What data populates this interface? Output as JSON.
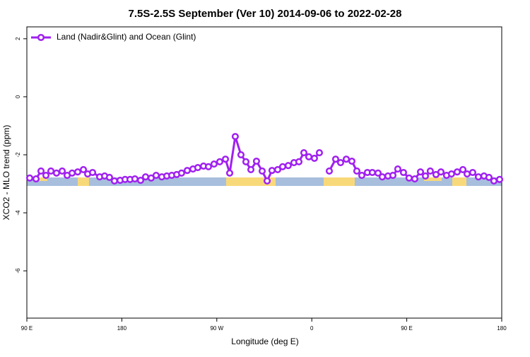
{
  "chart_data": {
    "type": "line",
    "title": "7.5S-2.5S September (Ver 10)   2014-09-06 to 2022-02-28",
    "x_label": "Longitude (deg E)",
    "y_label": "XCO2 - MLO trend (ppm)",
    "x": [
      92.7,
      98.7,
      103.4,
      108.1,
      112.8,
      118.1,
      123.5,
      128.2,
      132.9,
      138.2,
      143.6,
      147.6,
      152.3,
      159.0,
      163.7,
      168.3,
      173.0,
      178.4,
      183.1,
      187.8,
      192.4,
      197.8,
      202.5,
      207.8,
      212.5,
      217.9,
      222.6,
      227.3,
      232.0,
      236.6,
      242.0,
      247.4,
      252.0,
      257.4,
      262.1,
      267.4,
      272.8,
      278.2,
      282.2,
      287.5,
      292.9,
      297.6,
      302.3,
      307.6,
      313.0,
      317.7,
      322.3,
      327.7,
      332.4,
      337.7,
      343.1,
      347.8,
      352.5,
      357.2,
      362.5,
      367.2,
      371.9,
      376.6,
      382.6,
      387.3,
      392.7,
      398.0,
      402.7,
      407.4,
      412.7,
      417.4,
      422.8,
      426.8,
      432.2,
      436.9,
      441.5,
      446.9,
      452.2,
      457.6,
      463.0,
      467.7,
      472.3,
      477.7,
      482.4,
      487.7,
      492.4,
      497.8,
      503.2,
      507.2,
      512.5,
      517.9,
      523.2,
      527.9,
      532.6,
      538.0
    ],
    "series": [
      {
        "name": "Land (Nadir&Glint) and Ocean (Glint)",
        "color": "#a020f0",
        "values": [
          -2.8,
          -2.83,
          -2.56,
          -2.71,
          -2.56,
          -2.63,
          -2.56,
          -2.71,
          -2.63,
          -2.59,
          -2.51,
          -2.66,
          -2.61,
          -2.76,
          -2.73,
          -2.78,
          -2.9,
          -2.88,
          -2.85,
          -2.85,
          -2.83,
          -2.88,
          -2.76,
          -2.8,
          -2.71,
          -2.76,
          -2.73,
          -2.71,
          -2.68,
          -2.63,
          -2.54,
          -2.49,
          -2.44,
          -2.39,
          -2.41,
          -2.32,
          -2.24,
          -2.15,
          -2.63,
          -1.37,
          -2.0,
          -2.24,
          -2.51,
          -2.22,
          -2.56,
          -2.9,
          -2.54,
          -2.51,
          -2.41,
          -2.37,
          -2.27,
          -2.24,
          -1.93,
          -2.07,
          -2.12,
          -1.93,
          null,
          -2.56,
          -2.15,
          -2.27,
          -2.15,
          -2.22,
          -2.56,
          -2.71,
          -2.61,
          -2.61,
          -2.63,
          -2.76,
          -2.73,
          -2.71,
          -2.49,
          -2.61,
          -2.8,
          -2.83,
          -2.59,
          -2.73,
          -2.56,
          -2.68,
          -2.59,
          -2.71,
          -2.66,
          -2.59,
          -2.51,
          -2.66,
          -2.61,
          -2.76,
          -2.73,
          -2.78,
          -2.9,
          -2.85
        ]
      }
    ],
    "xlim": [
      90,
      540
    ],
    "xticks": [
      {
        "value": 90,
        "label": "90 E"
      },
      180,
      {
        "value": 270,
        "label": "90 W"
      },
      {
        "value": 360,
        "label": "0"
      },
      {
        "value": 450,
        "label": "90 E"
      },
      {
        "value": 540,
        "label": "180"
      }
    ],
    "ylim": [
      -7.63,
      2.41
    ],
    "yticks": [
      -6,
      -4,
      -2,
      0,
      2
    ],
    "legend": "top-left"
  }
}
